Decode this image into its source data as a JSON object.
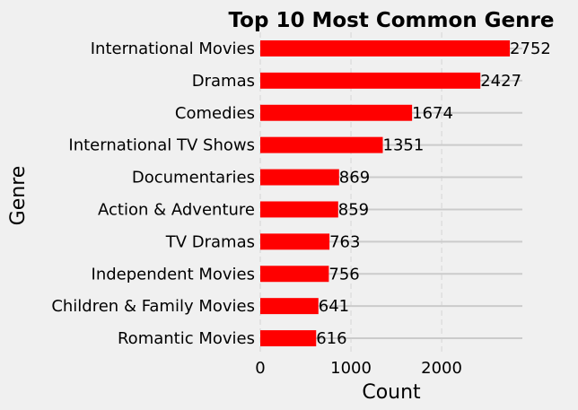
{
  "chart_data": {
    "type": "bar",
    "orientation": "horizontal",
    "title": "Top 10 Most Common Genre",
    "xlabel": "Count",
    "ylabel": "Genre",
    "categories": [
      "International Movies",
      "Dramas",
      "Comedies",
      "International TV Shows",
      "Documentaries",
      "Action & Adventure",
      "TV Dramas",
      "Independent Movies",
      "Children & Family Movies",
      "Romantic Movies"
    ],
    "values": [
      2752,
      2427,
      1674,
      1351,
      869,
      859,
      763,
      756,
      641,
      616
    ],
    "data_labels": [
      "2752",
      "2427",
      "1674",
      "1351",
      "869",
      "859",
      "763",
      "756",
      "641",
      "616"
    ],
    "x_ticks": [
      0,
      1000,
      2000
    ],
    "x_tick_labels": [
      "0",
      "1000",
      "2000"
    ],
    "xlim": [
      0,
      2890
    ],
    "bar_color": "#ff0000",
    "grid": true,
    "background": "#f0f0f0",
    "grid_color": "#cbcbcb"
  }
}
